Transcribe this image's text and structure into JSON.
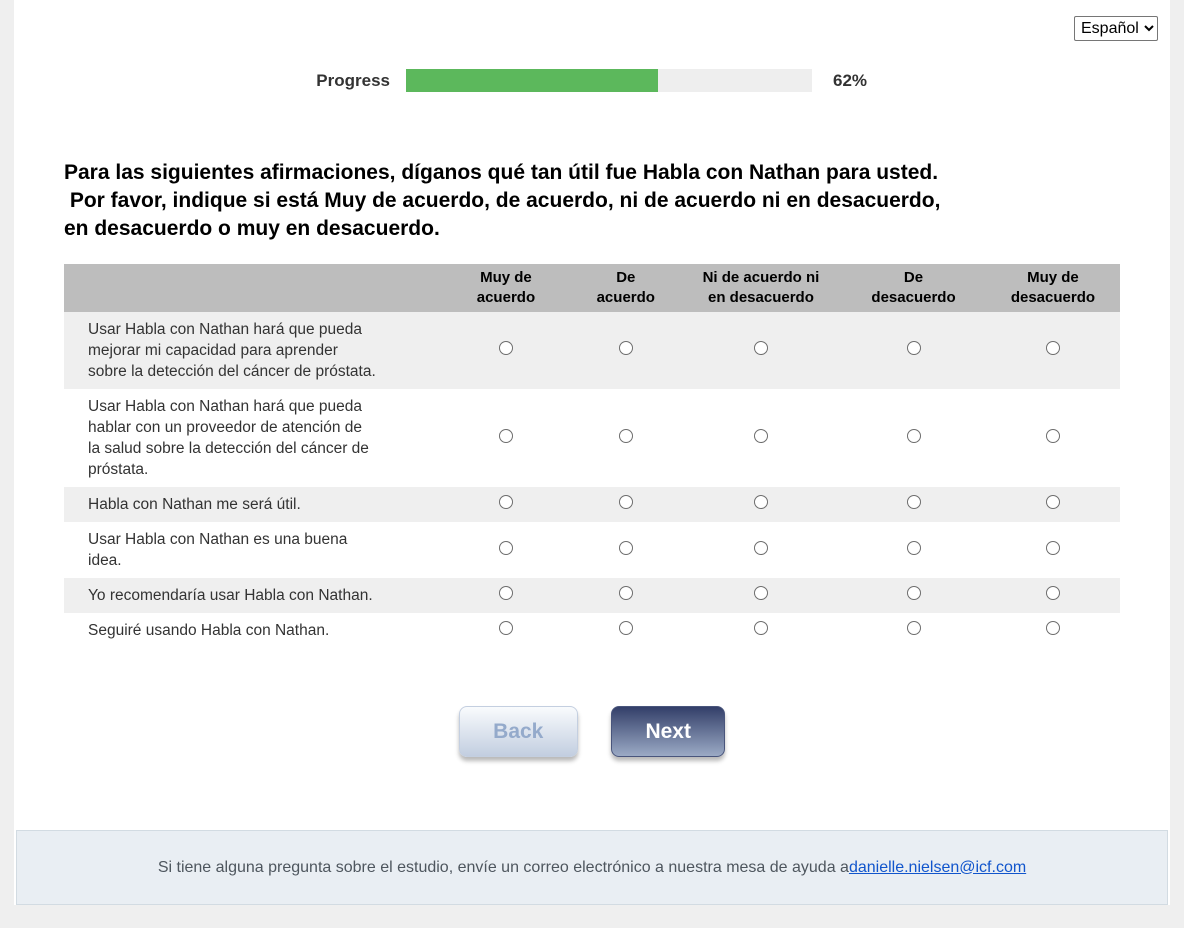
{
  "language_select": {
    "value": "Español"
  },
  "progress": {
    "label": "Progress",
    "percent": 62,
    "percent_label": "62%"
  },
  "question": {
    "text": "Para las siguientes afirmaciones, díganos qué tan útil fue Habla con Nathan para usted.\n Por favor, indique si está Muy de acuerdo, de acuerdo, ni de acuerdo ni en desacuerdo,\nen desacuerdo o muy en desacuerdo."
  },
  "matrix": {
    "columns": [
      "Muy de\nacuerdo",
      "De\nacuerdo",
      "Ni de acuerdo ni\nen desacuerdo",
      "De\ndesacuerdo",
      "Muy de\ndesacuerdo"
    ],
    "rows": [
      {
        "statement": "Usar Habla con Nathan hará que pueda\nmejorar mi capacidad para aprender\nsobre la detección del cáncer de próstata."
      },
      {
        "statement": "Usar Habla con Nathan hará que pueda\nhablar con un proveedor de atención de\nla salud sobre la detección del cáncer de\npróstata."
      },
      {
        "statement": "Habla con Nathan me será útil."
      },
      {
        "statement": "Usar Habla con Nathan es una buena\nidea."
      },
      {
        "statement": "Yo recomendaría usar Habla con Nathan."
      },
      {
        "statement": "Seguiré usando Habla con Nathan."
      }
    ],
    "selected_values": []
  },
  "buttons": {
    "back": "Back",
    "next": "Next"
  },
  "footer": {
    "text": "Si tiene alguna pregunta sobre el estudio, envíe un correo electrónico a nuestra mesa de ayuda a ",
    "email": "danielle.nielsen@icf.com"
  },
  "colors": {
    "page_background": "#efefef",
    "card_background": "#ffffff",
    "progress_fill": "#5cb85c",
    "progress_track": "#eeeeee",
    "table_header_bg": "#bdbdbd",
    "row_stripe_bg": "#efefef",
    "back_button_text": "#94aacb",
    "next_button_top": "#333f69",
    "next_button_bottom": "#9baac5",
    "footer_bg": "#e9eef3",
    "link_color": "#1155cc"
  }
}
